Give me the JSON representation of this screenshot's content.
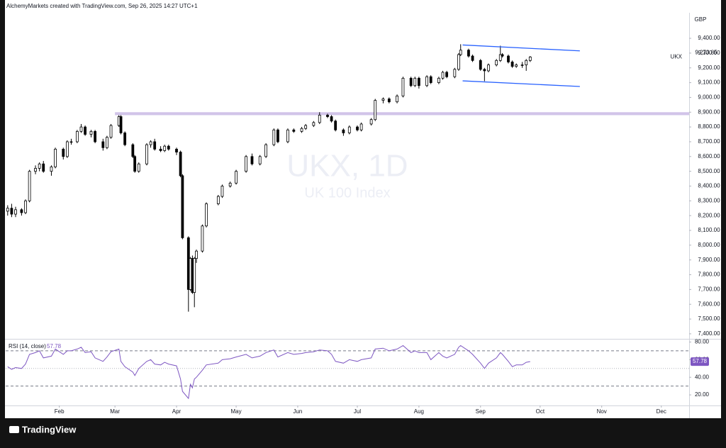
{
  "chart_data": {
    "type": "candlestick",
    "header": "AlchemyMarkets created with TradingView.com, Sep 26, 2025 14:27 UTC+1",
    "currency": "GBP",
    "symbol": "UKX",
    "watermark_title": "UKX, 1D",
    "watermark_subtitle": "UK 100 Index",
    "brand": "TradingView",
    "up_color": "#ffffff",
    "down_color": "#000000",
    "xlim": [
      5,
      349
    ],
    "xticks": [
      {
        "value": 32,
        "label": "Feb"
      },
      {
        "value": 60,
        "label": "Mar"
      },
      {
        "value": 91,
        "label": "Apr"
      },
      {
        "value": 121,
        "label": "May"
      },
      {
        "value": 152,
        "label": "Jun"
      },
      {
        "value": 182,
        "label": "Jul"
      },
      {
        "value": 213,
        "label": "Aug"
      },
      {
        "value": 244,
        "label": "Sep"
      },
      {
        "value": 274,
        "label": "Oct"
      },
      {
        "value": 305,
        "label": "Nov"
      },
      {
        "value": 335,
        "label": "Dec"
      }
    ],
    "ylim": [
      7366,
      9573
    ],
    "yticks": [
      {
        "value": 7400,
        "label": "7,400.00"
      },
      {
        "value": 7500,
        "label": "7,500.00"
      },
      {
        "value": 7600,
        "label": "7,600.00"
      },
      {
        "value": 7700,
        "label": "7,700.00"
      },
      {
        "value": 7800,
        "label": "7,800.00"
      },
      {
        "value": 7900,
        "label": "7,900.00"
      },
      {
        "value": 8000,
        "label": "8,000.00"
      },
      {
        "value": 8100,
        "label": "8,100.00"
      },
      {
        "value": 8200,
        "label": "8,200.00"
      },
      {
        "value": 8300,
        "label": "8,300.00"
      },
      {
        "value": 8400,
        "label": "8,400.00"
      },
      {
        "value": 8500,
        "label": "8,500.00"
      },
      {
        "value": 8600,
        "label": "8,600.00"
      },
      {
        "value": 8700,
        "label": "8,700.00"
      },
      {
        "value": 8800,
        "label": "8,800.00"
      },
      {
        "value": 8900,
        "label": "8,900.00"
      },
      {
        "value": 9000,
        "label": "9,000.00"
      },
      {
        "value": 9100,
        "label": "9,100.00"
      },
      {
        "value": 9200,
        "label": "9,200.00"
      },
      {
        "value": 9300,
        "label": "9,300.00"
      },
      {
        "value": 9400,
        "label": "9,400.00"
      }
    ],
    "candles": [
      [
        6,
        8230,
        8270,
        8200,
        8250
      ],
      [
        8,
        8250,
        8280,
        8190,
        8210
      ],
      [
        10,
        8210,
        8260,
        8190,
        8240
      ],
      [
        13,
        8240,
        8250,
        8200,
        8220
      ],
      [
        15,
        8220,
        8310,
        8210,
        8300
      ],
      [
        17,
        8300,
        8510,
        8290,
        8500
      ],
      [
        20,
        8500,
        8540,
        8480,
        8520
      ],
      [
        22,
        8520,
        8560,
        8500,
        8550
      ],
      [
        24,
        8550,
        8570,
        8490,
        8500
      ],
      [
        28,
        8500,
        8540,
        8470,
        8530
      ],
      [
        30,
        8530,
        8660,
        8520,
        8650
      ],
      [
        34,
        8650,
        8660,
        8580,
        8600
      ],
      [
        36,
        8600,
        8710,
        8590,
        8700
      ],
      [
        38,
        8700,
        8720,
        8680,
        8700
      ],
      [
        41,
        8700,
        8780,
        8690,
        8770
      ],
      [
        43,
        8770,
        8820,
        8760,
        8800
      ],
      [
        45,
        8800,
        8810,
        8740,
        8750
      ],
      [
        48,
        8750,
        8780,
        8730,
        8770
      ],
      [
        50,
        8770,
        8780,
        8690,
        8700
      ],
      [
        54,
        8700,
        8720,
        8640,
        8660
      ],
      [
        56,
        8660,
        8740,
        8650,
        8730
      ],
      [
        58,
        8730,
        8820,
        8720,
        8810
      ],
      [
        62,
        8810,
        8880,
        8800,
        8870
      ],
      [
        63,
        8870,
        8880,
        8750,
        8760
      ],
      [
        65,
        8760,
        8770,
        8670,
        8680
      ],
      [
        69,
        8680,
        8690,
        8590,
        8600
      ],
      [
        70,
        8600,
        8610,
        8490,
        8500
      ],
      [
        72,
        8500,
        8560,
        8490,
        8550
      ],
      [
        76,
        8550,
        8690,
        8540,
        8680
      ],
      [
        78,
        8680,
        8710,
        8660,
        8700
      ],
      [
        80,
        8700,
        8720,
        8640,
        8650
      ],
      [
        83,
        8650,
        8670,
        8630,
        8640
      ],
      [
        85,
        8640,
        8680,
        8630,
        8670
      ],
      [
        87,
        8670,
        8680,
        8640,
        8650
      ],
      [
        91,
        8650,
        8660,
        8610,
        8630
      ],
      [
        93,
        8630,
        8640,
        8460,
        8470
      ],
      [
        94,
        8470,
        8480,
        8040,
        8050
      ],
      [
        97,
        8050,
        8060,
        7550,
        7700
      ],
      [
        98,
        7700,
        7920,
        7690,
        7910
      ],
      [
        99,
        7910,
        7930,
        7670,
        7680
      ],
      [
        100,
        7680,
        7920,
        7580,
        7910
      ],
      [
        101,
        7910,
        7970,
        7880,
        7960
      ],
      [
        104,
        7960,
        8140,
        7950,
        8130
      ],
      [
        106,
        8130,
        8290,
        8120,
        8280
      ],
      [
        112,
        8280,
        8340,
        8270,
        8330
      ],
      [
        114,
        8330,
        8410,
        8320,
        8400
      ],
      [
        118,
        8400,
        8430,
        8390,
        8420
      ],
      [
        121,
        8420,
        8510,
        8410,
        8500
      ],
      [
        126,
        8500,
        8610,
        8490,
        8600
      ],
      [
        129,
        8600,
        8620,
        8540,
        8550
      ],
      [
        133,
        8550,
        8610,
        8540,
        8600
      ],
      [
        136,
        8600,
        8690,
        8590,
        8680
      ],
      [
        140,
        8680,
        8790,
        8670,
        8780
      ],
      [
        142,
        8780,
        8790,
        8690,
        8700
      ],
      [
        147,
        8700,
        8790,
        8690,
        8780
      ],
      [
        150,
        8780,
        8790,
        8760,
        8770
      ],
      [
        154,
        8770,
        8800,
        8760,
        8790
      ],
      [
        156,
        8790,
        8820,
        8780,
        8810
      ],
      [
        160,
        8810,
        8840,
        8800,
        8830
      ],
      [
        163,
        8830,
        8900,
        8820,
        8880
      ],
      [
        167,
        8880,
        8890,
        8860,
        8870
      ],
      [
        169,
        8870,
        8880,
        8830,
        8840
      ],
      [
        171,
        8840,
        8850,
        8770,
        8780
      ],
      [
        175,
        8780,
        8790,
        8740,
        8760
      ],
      [
        178,
        8760,
        8810,
        8750,
        8800
      ],
      [
        182,
        8800,
        8810,
        8770,
        8780
      ],
      [
        184,
        8780,
        8830,
        8770,
        8820
      ],
      [
        189,
        8820,
        8860,
        8810,
        8850
      ],
      [
        191,
        8850,
        8990,
        8840,
        8980
      ],
      [
        195,
        8980,
        9000,
        8960,
        8990
      ],
      [
        198,
        8990,
        9000,
        8960,
        8970
      ],
      [
        202,
        8970,
        9020,
        8960,
        9010
      ],
      [
        205,
        9010,
        9140,
        9000,
        9130
      ],
      [
        209,
        9130,
        9140,
        9070,
        9080
      ],
      [
        211,
        9080,
        9140,
        9070,
        9130
      ],
      [
        213,
        9130,
        9140,
        9060,
        9080
      ],
      [
        217,
        9080,
        9150,
        9070,
        9140
      ],
      [
        219,
        9140,
        9150,
        9090,
        9100
      ],
      [
        223,
        9100,
        9140,
        9090,
        9130
      ],
      [
        225,
        9130,
        9180,
        9120,
        9170
      ],
      [
        227,
        9170,
        9180,
        9130,
        9140
      ],
      [
        231,
        9140,
        9200,
        9130,
        9190
      ],
      [
        233,
        9190,
        9300,
        9180,
        9290
      ],
      [
        234,
        9290,
        9360,
        9280,
        9320
      ],
      [
        238,
        9320,
        9330,
        9270,
        9280
      ],
      [
        240,
        9280,
        9290,
        9240,
        9250
      ],
      [
        244,
        9250,
        9260,
        9180,
        9190
      ],
      [
        246,
        9190,
        9200,
        9110,
        9180
      ],
      [
        248,
        9180,
        9230,
        9170,
        9220
      ],
      [
        252,
        9220,
        9260,
        9210,
        9250
      ],
      [
        254,
        9250,
        9350,
        9240,
        9290
      ],
      [
        255,
        9290,
        9300,
        9270,
        9280
      ],
      [
        258,
        9280,
        9290,
        9230,
        9240
      ],
      [
        260,
        9240,
        9250,
        9200,
        9210
      ],
      [
        262,
        9210,
        9230,
        9200,
        9220
      ],
      [
        265,
        9220,
        9240,
        9200,
        9220
      ],
      [
        267,
        9220,
        9260,
        9180,
        9250
      ],
      [
        269,
        9250,
        9280,
        9240,
        9273.85
      ]
    ],
    "last_price": {
      "value": 9273.85,
      "label": "9,273.85"
    },
    "zone": {
      "from": 8880,
      "to": 8900,
      "start": 60,
      "color": "#d1c4e9"
    },
    "channel": [
      {
        "x": [
          235,
          294
        ],
        "y": [
          9355,
          9315
        ]
      },
      {
        "x": [
          235,
          294
        ],
        "y": [
          9112,
          9074
        ]
      }
    ],
    "channel_color": "#2962ff",
    "rsi": {
      "name": "RSI (14, close)",
      "color": "#7e57c2",
      "ylim": [
        8,
        82
      ],
      "yticks": [
        {
          "value": 20,
          "label": "20.00"
        },
        {
          "value": 40,
          "label": "40.00"
        },
        {
          "value": 60,
          "label": "60.00"
        },
        {
          "value": 80,
          "label": "80.00"
        }
      ],
      "levels": [
        70,
        50,
        30
      ],
      "values": [
        52,
        49,
        51,
        50,
        55,
        66,
        68,
        70,
        62,
        64,
        72,
        66,
        70,
        70,
        72,
        74,
        68,
        69,
        62,
        58,
        63,
        69,
        72,
        58,
        52,
        46,
        42,
        50,
        58,
        60,
        55,
        54,
        57,
        55,
        53,
        38,
        24,
        16,
        32,
        28,
        38,
        40,
        48,
        54,
        56,
        60,
        61,
        63,
        66,
        62,
        64,
        68,
        71,
        63,
        68,
        66,
        67,
        68,
        69,
        71,
        70,
        66,
        58,
        56,
        60,
        58,
        60,
        62,
        72,
        73,
        70,
        72,
        76,
        68,
        70,
        68,
        68,
        60,
        68,
        64,
        62,
        66,
        74,
        76,
        70,
        66,
        56,
        50,
        56,
        62,
        68,
        66,
        58,
        52,
        54,
        54,
        57,
        57.78
      ]
    }
  }
}
